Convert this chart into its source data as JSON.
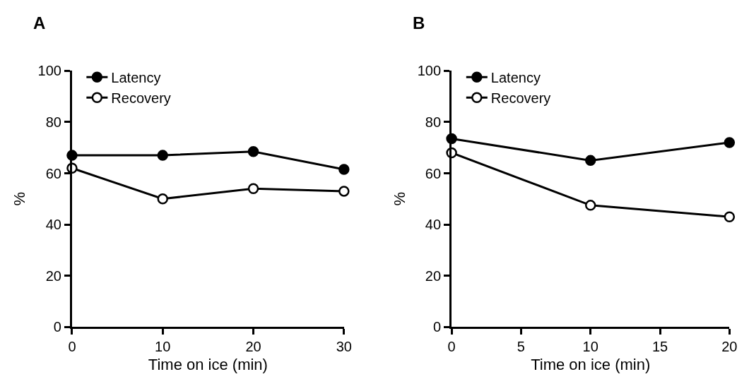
{
  "chart_data": [
    {
      "type": "line",
      "title": "A",
      "xlabel": "Time on ice (min)",
      "ylabel": "%",
      "x": [
        0,
        10,
        20,
        30
      ],
      "series": [
        {
          "name": "Latency",
          "color": "#000000",
          "marker": "circle",
          "values": [
            67,
            67,
            68.5,
            61.5
          ]
        },
        {
          "name": "Recovery",
          "color": "#000000",
          "marker": "circle-open",
          "values": [
            62,
            50,
            54,
            53
          ]
        }
      ],
      "xlim": [
        0,
        30
      ],
      "xticks": [
        0,
        10,
        20,
        30
      ],
      "ylim": [
        0,
        100
      ],
      "yticks": [
        0,
        20,
        40,
        60,
        80,
        100
      ],
      "legend": "top left",
      "line_style": "solid"
    },
    {
      "type": "line",
      "title": "B",
      "xlabel": "Time on ice (min)",
      "ylabel": "%",
      "x": [
        0,
        10,
        20
      ],
      "series": [
        {
          "name": "Latency",
          "color": "#000000",
          "marker": "circle",
          "values": [
            73.5,
            65,
            72
          ]
        },
        {
          "name": "Recovery",
          "color": "#000000",
          "marker": "circle-open",
          "values": [
            68,
            47.5,
            43
          ]
        }
      ],
      "xlim": [
        0,
        20
      ],
      "xticks": [
        0,
        5,
        10,
        15,
        20
      ],
      "ylim": [
        0,
        100
      ],
      "yticks": [
        0,
        20,
        40,
        60,
        80,
        100
      ],
      "legend": "top left",
      "line_style": "solid"
    }
  ]
}
